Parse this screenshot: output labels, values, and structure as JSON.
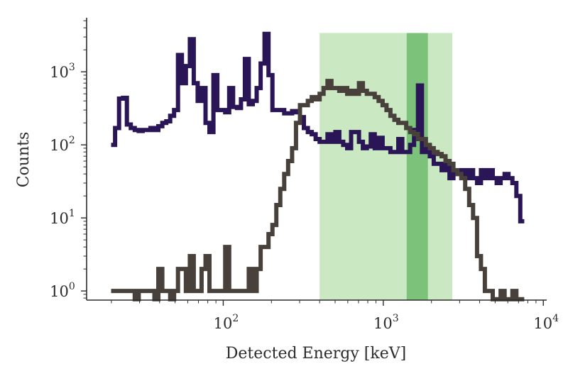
{
  "chart_data": {
    "type": "line",
    "title": "",
    "xlabel": "Detected Energy [keV]",
    "ylabel": "Counts",
    "xscale": "log",
    "yscale": "log",
    "xlim": [
      14,
      10500
    ],
    "ylim": [
      0.75,
      5500
    ],
    "grid": false,
    "legend": "none",
    "x_ticks": [
      {
        "base": "10",
        "exp": "2",
        "value": 100
      },
      {
        "base": "10",
        "exp": "3",
        "value": 1000
      },
      {
        "base": "10",
        "exp": "4",
        "value": 10000
      }
    ],
    "y_ticks": [
      {
        "base": "10",
        "exp": "0",
        "value": 1
      },
      {
        "base": "10",
        "exp": "1",
        "value": 10
      },
      {
        "base": "10",
        "exp": "2",
        "value": 100
      },
      {
        "base": "10",
        "exp": "3",
        "value": 1000
      }
    ],
    "shaded_regions": [
      {
        "x_start": 400,
        "x_end": 2700,
        "color": "#a6d89a",
        "opacity": 0.6
      },
      {
        "x_start": 1400,
        "x_end": 1900,
        "color": "#4aa84a",
        "opacity": 0.6
      }
    ],
    "region_top": 3400,
    "series": [
      {
        "color": "#2a1557",
        "x": [
          20.5,
          21.7,
          23.0,
          24.3,
          25.7,
          27.2,
          28.8,
          30.5,
          32.2,
          34.1,
          36.1,
          38.2,
          40.4,
          42.8,
          45.3,
          47.9,
          50.7,
          53.6,
          56.8,
          60.1,
          63.6,
          67.3,
          71.2,
          75.3,
          79.7,
          84.4,
          89.3,
          94.5,
          100,
          105.8,
          112,
          118.5,
          125.4,
          132.7,
          140.4,
          148.6,
          157.3,
          166.4,
          176.1,
          186.4,
          197.2,
          208.7,
          220.9,
          233.7,
          247.3,
          261.7,
          277,
          293.1,
          310.2,
          328.3,
          347.4,
          367.6,
          389,
          411.7,
          435.7,
          461,
          487.9,
          516.3,
          546.4,
          578.2,
          611.9,
          647.5,
          685.2,
          725.1,
          767.4,
          812.1,
          859.4,
          909.4,
          962.4,
          1018.5,
          1077.8,
          1140.6,
          1207,
          1277.4,
          1351.8,
          1430.5,
          1513.8,
          1602,
          1695.3,
          1794.1,
          1898.6,
          2009.2,
          2126.2,
          2250,
          2381.1,
          2519.8,
          2666.6,
          2821.9,
          2986.3,
          3160.2,
          3344.3,
          3539.1,
          3745.2,
          3963.4,
          4194.2,
          4438.5,
          4697.1,
          4970.7,
          5260.2,
          5566.6,
          5890.9,
          6234,
          6597.1,
          6981.4,
          7388
        ],
        "y": [
          100,
          170,
          430,
          440,
          190,
          170,
          160,
          155,
          160,
          160,
          170,
          160,
          180,
          200,
          210,
          250,
          300,
          1700,
          700,
          1200,
          2800,
          700,
          400,
          600,
          200,
          150,
          900,
          300,
          300,
          280,
          600,
          330,
          320,
          420,
          1500,
          360,
          400,
          600,
          1300,
          3300,
          900,
          300,
          300,
          300,
          270,
          270,
          290,
          280,
          240,
          170,
          150,
          140,
          120,
          110,
          110,
          140,
          110,
          150,
          110,
          100,
          90,
          150,
          150,
          110,
          90,
          95,
          140,
          90,
          125,
          90,
          90,
          80,
          80,
          120,
          80,
          80,
          100,
          160,
          650,
          80,
          95,
          70,
          55,
          55,
          45,
          55,
          35,
          40,
          40,
          45,
          35,
          45,
          35,
          30,
          45,
          35,
          45,
          35,
          30,
          35,
          40,
          35,
          30,
          20,
          9
        ]
      },
      {
        "color": "#48403a",
        "x": [
          20.5,
          21.7,
          23.0,
          24.3,
          25.7,
          27.2,
          28.8,
          30.5,
          32.2,
          34.1,
          36.1,
          38.2,
          40.4,
          42.8,
          45.3,
          47.9,
          50.7,
          53.6,
          56.8,
          60.1,
          63.6,
          67.3,
          71.2,
          75.3,
          79.7,
          84.4,
          89.3,
          94.5,
          100,
          105.8,
          112,
          118.5,
          125.4,
          132.7,
          140.4,
          148.6,
          157.3,
          166.4,
          176.1,
          186.4,
          197.2,
          208.7,
          220.9,
          233.7,
          247.3,
          261.7,
          277,
          293.1,
          310.2,
          328.3,
          347.4,
          367.6,
          389,
          411.7,
          435.7,
          461,
          487.9,
          516.3,
          546.4,
          578.2,
          611.9,
          647.5,
          685.2,
          725.1,
          767.4,
          812.1,
          859.4,
          909.4,
          962.4,
          1018.5,
          1077.8,
          1140.6,
          1207,
          1277.4,
          1351.8,
          1430.5,
          1513.8,
          1602,
          1695.3,
          1794.1,
          1898.6,
          2009.2,
          2126.2,
          2250,
          2381.1,
          2519.8,
          2666.6,
          2821.9,
          2986.3,
          3160.2,
          3344.3,
          3539.1,
          3745.2,
          3963.4,
          4194.2,
          4438.5,
          4697.1,
          4970.7,
          5260.2,
          5566.6,
          5890.9,
          6234,
          6597.1,
          6981.4,
          7388
        ],
        "y": [
          1,
          1,
          1,
          1,
          1,
          1,
          0.77,
          1,
          1,
          1,
          1,
          0.77,
          2,
          1,
          1,
          0.77,
          1,
          2,
          2,
          1,
          3,
          1,
          1,
          2,
          3,
          1,
          1,
          1,
          1,
          4,
          1,
          1,
          1,
          1,
          1,
          2,
          1,
          2,
          4,
          4,
          6,
          8,
          15,
          25,
          40,
          60,
          90,
          200,
          350,
          350,
          400,
          450,
          420,
          500,
          600,
          750,
          600,
          600,
          550,
          600,
          500,
          550,
          500,
          700,
          550,
          500,
          500,
          450,
          400,
          350,
          300,
          250,
          220,
          200,
          200,
          170,
          150,
          140,
          120,
          120,
          100,
          90,
          80,
          75,
          70,
          60,
          55,
          45,
          40,
          35,
          25,
          15,
          10,
          3,
          2,
          1,
          1,
          0.77,
          0.77,
          1,
          0.77,
          0.77,
          1,
          0.77,
          0.77
        ]
      }
    ]
  }
}
